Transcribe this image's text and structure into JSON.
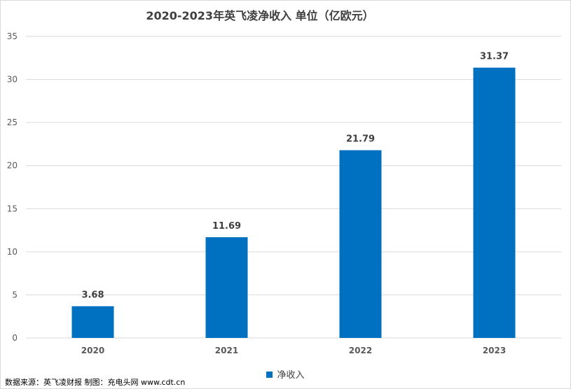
{
  "chart_data": {
    "type": "bar",
    "title": "2020-2023年英飞凌净收入 单位（亿欧元）",
    "categories": [
      "2020",
      "2021",
      "2022",
      "2023"
    ],
    "series": [
      {
        "name": "净收入",
        "values": [
          3.68,
          11.69,
          21.79,
          31.37
        ]
      }
    ],
    "data_labels": [
      "3.68",
      "11.69",
      "21.79",
      "31.37"
    ],
    "ylim": [
      0,
      35
    ],
    "yticks": [
      0,
      5,
      10,
      15,
      20,
      25,
      30,
      35
    ],
    "ytick_labels": [
      "0",
      "5",
      "10",
      "15",
      "20",
      "25",
      "30",
      "35"
    ],
    "grid": true,
    "legend_position": "bottom",
    "bar_color": "#0070c0"
  },
  "footnote": "数据来源：英飞凌财报   制图：充电头网 www.cdt.cn"
}
